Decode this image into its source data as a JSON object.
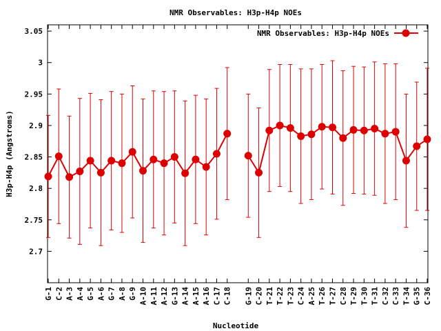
{
  "chart_data": {
    "type": "line",
    "title": "NMR Observables: H3p-H4p NOEs",
    "xlabel": "Nucleotide",
    "ylabel": "H3p-H4p (Angstroms)",
    "ylim": [
      2.65,
      3.06
    ],
    "yticks": [
      2.7,
      2.75,
      2.8,
      2.85,
      2.9,
      2.95,
      3,
      3.05
    ],
    "ytick_labels": [
      "2.7",
      "2.75",
      "2.8",
      "2.85",
      "2.9",
      "2.95",
      "3",
      "3.05"
    ],
    "legend_position": "top-right",
    "color": "#dd0000",
    "series": [
      {
        "name": "NMR Observables: H3p-H4p NOEs",
        "points": [
          {
            "x": "G-1",
            "y": 2.819,
            "err": 0.097
          },
          {
            "x": "C-2",
            "y": 2.851,
            "err": 0.107
          },
          {
            "x": "A-3",
            "y": 2.818,
            "err": 0.097
          },
          {
            "x": "A-4",
            "y": 2.827,
            "err": 0.116
          },
          {
            "x": "G-5",
            "y": 2.844,
            "err": 0.107
          },
          {
            "x": "A-6",
            "y": 2.825,
            "err": 0.116
          },
          {
            "x": "G-7",
            "y": 2.844,
            "err": 0.11
          },
          {
            "x": "A-8",
            "y": 2.84,
            "err": 0.11
          },
          {
            "x": "G-9",
            "y": 2.858,
            "err": 0.105
          },
          {
            "x": "A-10",
            "y": 2.828,
            "err": 0.114
          },
          {
            "x": "A-11",
            "y": 2.846,
            "err": 0.109
          },
          {
            "x": "A-12",
            "y": 2.84,
            "err": 0.114
          },
          {
            "x": "G-13",
            "y": 2.85,
            "err": 0.105
          },
          {
            "x": "A-14",
            "y": 2.824,
            "err": 0.115
          },
          {
            "x": "A-15",
            "y": 2.846,
            "err": 0.102
          },
          {
            "x": "A-16",
            "y": 2.834,
            "err": 0.108
          },
          {
            "x": "C-17",
            "y": 2.855,
            "err": 0.104
          },
          {
            "x": "C-18",
            "y": 2.887,
            "err": 0.105
          },
          {
            "x": "G-19",
            "y": 2.852,
            "err": 0.098
          },
          {
            "x": "C-20",
            "y": 2.825,
            "err": 0.103
          },
          {
            "x": "T-21",
            "y": 2.892,
            "err": 0.097
          },
          {
            "x": "T-22",
            "y": 2.9,
            "err": 0.097
          },
          {
            "x": "T-23",
            "y": 2.896,
            "err": 0.101
          },
          {
            "x": "C-24",
            "y": 2.883,
            "err": 0.107
          },
          {
            "x": "A-25",
            "y": 2.886,
            "err": 0.104
          },
          {
            "x": "T-26",
            "y": 2.898,
            "err": 0.099
          },
          {
            "x": "T-27",
            "y": 2.897,
            "err": 0.106
          },
          {
            "x": "C-28",
            "y": 2.88,
            "err": 0.107
          },
          {
            "x": "T-29",
            "y": 2.893,
            "err": 0.101
          },
          {
            "x": "T-30",
            "y": 2.892,
            "err": 0.101
          },
          {
            "x": "T-31",
            "y": 2.895,
            "err": 0.106
          },
          {
            "x": "C-32",
            "y": 2.887,
            "err": 0.111
          },
          {
            "x": "C-33",
            "y": 2.89,
            "err": 0.108
          },
          {
            "x": "T-34",
            "y": 2.844,
            "err": 0.106
          },
          {
            "x": "G-35",
            "y": 2.867,
            "err": 0.102
          },
          {
            "x": "C-36",
            "y": 2.878,
            "err": 0.113
          }
        ]
      }
    ]
  }
}
